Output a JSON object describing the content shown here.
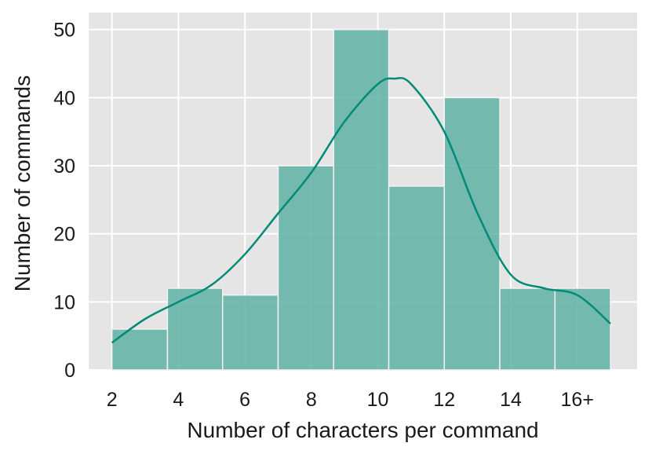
{
  "chart_data": {
    "type": "bar",
    "subtype": "histogram-with-kde",
    "xlabel": "Number of characters per command",
    "ylabel": "Number of commands",
    "xlim": [
      1.3,
      17.8
    ],
    "ylim": [
      0,
      52.5
    ],
    "x_ticks": [
      {
        "value": 2,
        "label": "2"
      },
      {
        "value": 4,
        "label": "4"
      },
      {
        "value": 6,
        "label": "6"
      },
      {
        "value": 8,
        "label": "8"
      },
      {
        "value": 10,
        "label": "10"
      },
      {
        "value": 12,
        "label": "12"
      },
      {
        "value": 14,
        "label": "14"
      },
      {
        "value": 16,
        "label": "16+"
      }
    ],
    "y_ticks": [
      0,
      10,
      20,
      30,
      40,
      50
    ],
    "bins": [
      {
        "x0": 2.0,
        "x1": 3.67,
        "count": 6
      },
      {
        "x0": 3.67,
        "x1": 5.33,
        "count": 12
      },
      {
        "x0": 5.33,
        "x1": 7.0,
        "count": 11
      },
      {
        "x0": 7.0,
        "x1": 8.67,
        "count": 30
      },
      {
        "x0": 8.67,
        "x1": 10.33,
        "count": 50
      },
      {
        "x0": 10.33,
        "x1": 12.0,
        "count": 27
      },
      {
        "x0": 12.0,
        "x1": 13.67,
        "count": 40
      },
      {
        "x0": 13.67,
        "x1": 15.33,
        "count": 12
      },
      {
        "x0": 15.33,
        "x1": 17.0,
        "count": 12
      }
    ],
    "kde": {
      "x": [
        2.0,
        3.0,
        4.0,
        5.0,
        6.0,
        7.0,
        8.0,
        9.0,
        10.0,
        10.5,
        11.0,
        12.0,
        13.0,
        14.0,
        15.0,
        16.0,
        17.0
      ],
      "y": [
        4,
        7.5,
        10,
        12.5,
        17,
        23,
        29,
        36.5,
        42,
        42.8,
        42,
        35,
        23,
        14,
        12,
        11,
        6.8
      ]
    },
    "colors": {
      "bar_fill": "#5fb1a5",
      "bar_edge": "#f2f2f2",
      "kde_line": "#008b78",
      "plot_bg": "#e5e5e5",
      "grid": "#ffffff"
    },
    "grid": true,
    "legend": "none"
  }
}
